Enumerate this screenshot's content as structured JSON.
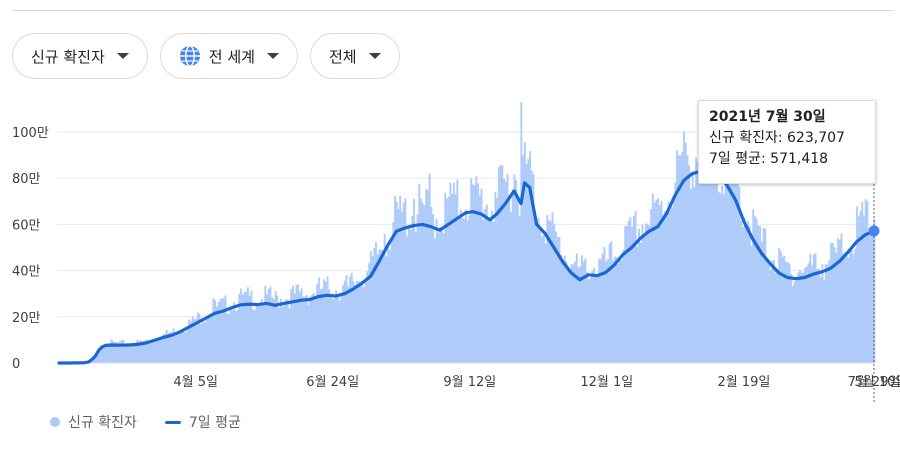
{
  "filters": [
    {
      "label": "신규 확진자",
      "icon": null
    },
    {
      "label": "전 세계",
      "icon": "globe-icon"
    },
    {
      "label": "전체",
      "icon": null
    }
  ],
  "tooltip": {
    "date": "2021년 7월 30일",
    "cases_label": "신규 확진자: 623,707",
    "avg_label": "7일 평균: 571,418"
  },
  "legend": {
    "cases": "신규 확진자",
    "avg": "7일 평균"
  },
  "colors": {
    "bars": "#aecbfa",
    "line": "#1967d2",
    "grid": "#e8eaed",
    "axis_text": "#3c4043"
  },
  "chart_data": {
    "type": "bar",
    "x_labels": [
      "4월 5일",
      "6월 24일",
      "9월 12일",
      "12월 1일",
      "2월 19일",
      "5월 10일",
      "7월 29일"
    ],
    "y_tick_labels": [
      "0",
      "20만",
      "40만",
      "60만",
      "80만",
      "100만"
    ],
    "ylim": [
      0,
      1000000
    ],
    "grid": true,
    "legend_position": "bottom-left",
    "series": [
      {
        "name": "7일 평균",
        "type": "line",
        "points": [
          [
            0,
            0
          ],
          [
            5,
            100
          ],
          [
            10,
            500
          ],
          [
            14,
            1000
          ],
          [
            17,
            4000
          ],
          [
            19,
            15000
          ],
          [
            21,
            30000
          ],
          [
            23,
            55000
          ],
          [
            25,
            70000
          ],
          [
            27,
            76000
          ],
          [
            30,
            78000
          ],
          [
            35,
            77000
          ],
          [
            40,
            78000
          ],
          [
            45,
            80000
          ],
          [
            50,
            86000
          ],
          [
            55,
            98000
          ],
          [
            60,
            110000
          ],
          [
            65,
            120000
          ],
          [
            70,
            135000
          ],
          [
            75,
            155000
          ],
          [
            80,
            175000
          ],
          [
            85,
            195000
          ],
          [
            90,
            215000
          ],
          [
            95,
            225000
          ],
          [
            100,
            240000
          ],
          [
            105,
            252000
          ],
          [
            110,
            255000
          ],
          [
            115,
            253000
          ],
          [
            120,
            258000
          ],
          [
            125,
            250000
          ],
          [
            130,
            258000
          ],
          [
            135,
            265000
          ],
          [
            140,
            272000
          ],
          [
            145,
            275000
          ],
          [
            150,
            288000
          ],
          [
            155,
            293000
          ],
          [
            160,
            290000
          ],
          [
            165,
            300000
          ],
          [
            170,
            320000
          ],
          [
            175,
            345000
          ],
          [
            180,
            375000
          ],
          [
            185,
            440000
          ],
          [
            190,
            510000
          ],
          [
            195,
            570000
          ],
          [
            200,
            585000
          ],
          [
            205,
            595000
          ],
          [
            210,
            600000
          ],
          [
            215,
            590000
          ],
          [
            220,
            575000
          ],
          [
            225,
            600000
          ],
          [
            230,
            625000
          ],
          [
            235,
            650000
          ],
          [
            239,
            655000
          ],
          [
            244,
            645000
          ],
          [
            249,
            620000
          ],
          [
            253,
            645000
          ],
          [
            258,
            690000
          ],
          [
            263,
            745000
          ],
          [
            267,
            690000
          ],
          [
            269,
            780000
          ],
          [
            272,
            760000
          ],
          [
            276,
            600000
          ],
          [
            281,
            560000
          ],
          [
            286,
            500000
          ],
          [
            291,
            440000
          ],
          [
            296,
            390000
          ],
          [
            301,
            360000
          ],
          [
            306,
            382000
          ],
          [
            311,
            378000
          ],
          [
            316,
            392000
          ],
          [
            321,
            425000
          ],
          [
            326,
            470000
          ],
          [
            331,
            500000
          ],
          [
            336,
            540000
          ],
          [
            341,
            570000
          ],
          [
            346,
            590000
          ],
          [
            351,
            645000
          ],
          [
            356,
            725000
          ],
          [
            361,
            790000
          ],
          [
            366,
            820000
          ],
          [
            371,
            830000
          ],
          [
            376,
            835000
          ],
          [
            381,
            820000
          ],
          [
            386,
            770000
          ],
          [
            391,
            705000
          ],
          [
            396,
            610000
          ],
          [
            401,
            535000
          ],
          [
            406,
            475000
          ],
          [
            411,
            430000
          ],
          [
            416,
            390000
          ],
          [
            421,
            370000
          ],
          [
            426,
            365000
          ],
          [
            431,
            370000
          ],
          [
            436,
            385000
          ],
          [
            441,
            395000
          ],
          [
            446,
            410000
          ],
          [
            451,
            440000
          ],
          [
            456,
            480000
          ],
          [
            461,
            525000
          ],
          [
            466,
            555000
          ],
          [
            471,
            571418
          ]
        ]
      },
      {
        "name": "신규 확진자",
        "type": "bar",
        "spikes": [
          [
            63,
            130000
          ],
          [
            89,
            280000
          ],
          [
            108,
            310000
          ],
          [
            167,
            330000
          ],
          [
            188,
            560000
          ],
          [
            205,
            710000
          ],
          [
            214,
            820000
          ],
          [
            226,
            780000
          ],
          [
            240,
            770000
          ],
          [
            252,
            740000
          ],
          [
            267,
            1130000
          ],
          [
            270,
            860000
          ],
          [
            358,
            900000
          ],
          [
            372,
            960000
          ],
          [
            467,
            700000
          ]
        ],
        "highlighted": {
          "x": 471,
          "value": 623707
        }
      }
    ]
  }
}
